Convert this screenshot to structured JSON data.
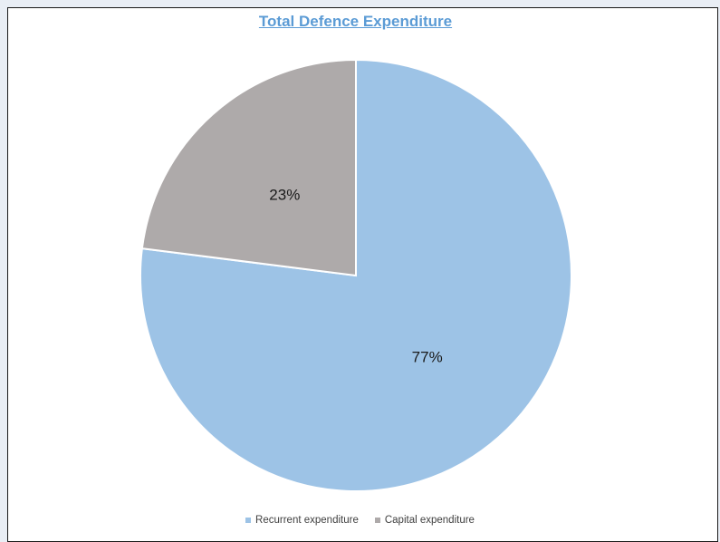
{
  "chart_data": {
    "type": "pie",
    "title": "Total Defence Expenditure",
    "slices": [
      {
        "label": "Recurrent expenditure",
        "value": 77,
        "display": "77%",
        "color": "#9dc3e6"
      },
      {
        "label": "Capital expenditure",
        "value": 23,
        "display": "23%",
        "color": "#aeaaaa"
      }
    ],
    "start_angle_deg": 0,
    "direction": "clockwise",
    "legend_position": "bottom"
  }
}
